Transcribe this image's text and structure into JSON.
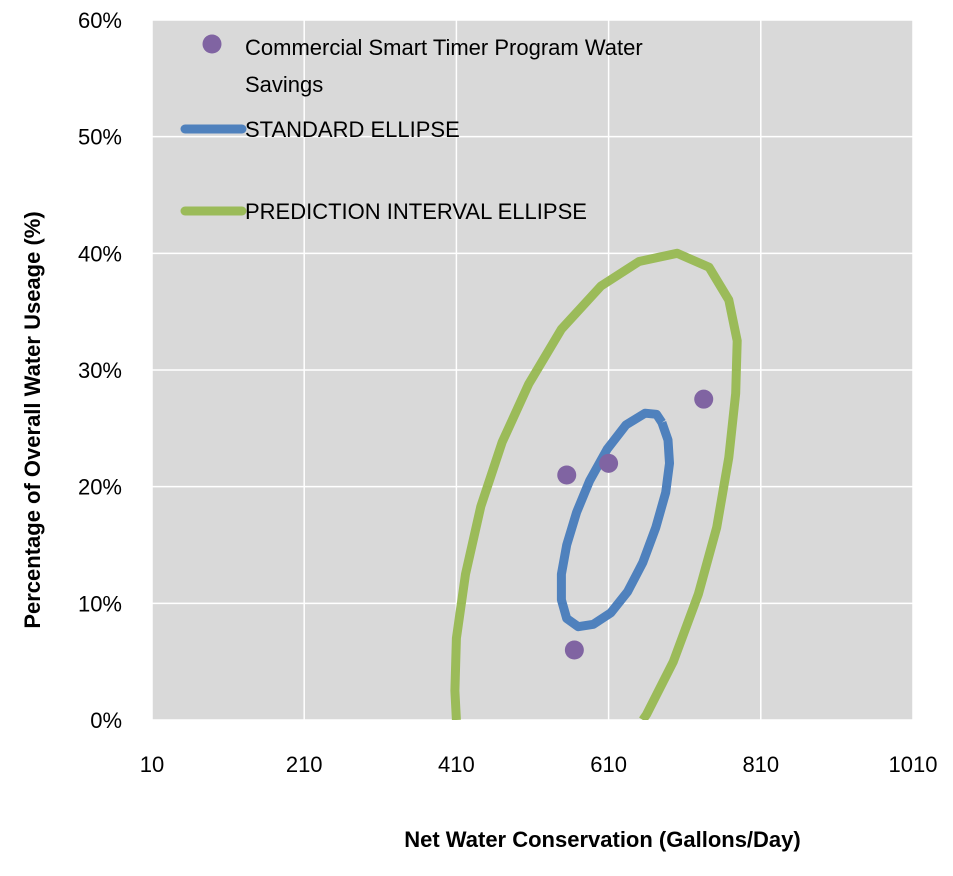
{
  "chart_data": {
    "type": "scatter",
    "title": "",
    "xlabel": "Net Water Conservation (Gallons/Day)",
    "ylabel": "Percentage of Overall Water Useage (%)",
    "xlim": [
      10,
      1010
    ],
    "ylim": [
      0,
      0.6
    ],
    "x_ticks": [
      10,
      210,
      410,
      610,
      810,
      1010
    ],
    "x_tick_labels": [
      "10",
      "210",
      "410",
      "610",
      "810",
      "1010"
    ],
    "y_ticks": [
      0,
      0.1,
      0.2,
      0.3,
      0.4,
      0.5,
      0.6
    ],
    "y_tick_labels": [
      "0%",
      "10%",
      "20%",
      "30%",
      "40%",
      "50%",
      "60%"
    ],
    "grid": true,
    "plot_background": "#d9d9d9",
    "legend_position": "top-left",
    "series": [
      {
        "name": "Commercial Smart Timer Program Water Savings",
        "legend_lines": [
          "Commercial Smart Timer Program Water",
          "Savings"
        ],
        "kind": "points",
        "color": "#8064a2",
        "points": [
          [
            555,
            0.21
          ],
          [
            610,
            0.22
          ],
          [
            735,
            0.275
          ],
          [
            565,
            0.06
          ]
        ]
      },
      {
        "name": "STANDARD ELLIPSE",
        "kind": "line",
        "color": "#4f81bd",
        "points": [
          [
            680,
            0.255
          ],
          [
            688,
            0.24
          ],
          [
            690,
            0.22
          ],
          [
            685,
            0.195
          ],
          [
            672,
            0.165
          ],
          [
            655,
            0.135
          ],
          [
            635,
            0.11
          ],
          [
            613,
            0.092
          ],
          [
            590,
            0.082
          ],
          [
            570,
            0.08
          ],
          [
            555,
            0.087
          ],
          [
            548,
            0.103
          ],
          [
            548,
            0.125
          ],
          [
            555,
            0.15
          ],
          [
            568,
            0.178
          ],
          [
            585,
            0.205
          ],
          [
            608,
            0.232
          ],
          [
            633,
            0.253
          ],
          [
            658,
            0.263
          ],
          [
            673,
            0.262
          ],
          [
            680,
            0.255
          ]
        ]
      },
      {
        "name": "PREDICTION INTERVAL ELLIPSE",
        "kind": "line",
        "color": "#9bbb59",
        "points": [
          [
            410,
            0.0
          ],
          [
            408,
            0.025
          ],
          [
            410,
            0.07
          ],
          [
            422,
            0.125
          ],
          [
            442,
            0.183
          ],
          [
            470,
            0.238
          ],
          [
            505,
            0.288
          ],
          [
            548,
            0.335
          ],
          [
            600,
            0.372
          ],
          [
            650,
            0.393
          ],
          [
            700,
            0.4
          ],
          [
            742,
            0.388
          ],
          [
            768,
            0.36
          ],
          [
            779,
            0.325
          ],
          [
            777,
            0.28
          ],
          [
            768,
            0.225
          ],
          [
            752,
            0.165
          ],
          [
            728,
            0.108
          ],
          [
            695,
            0.05
          ],
          [
            660,
            0.005
          ],
          [
            655,
            0.0
          ]
        ]
      }
    ]
  }
}
